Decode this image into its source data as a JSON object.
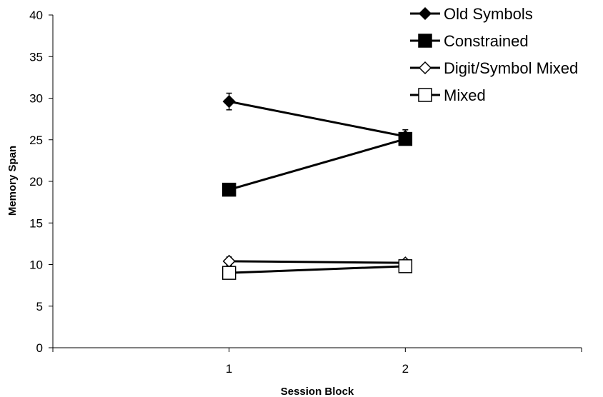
{
  "chart_data": {
    "type": "line",
    "title": "",
    "xlabel": "Session Block",
    "ylabel": "Memory Span",
    "categories": [
      "1",
      "2"
    ],
    "ylim": [
      0,
      40
    ],
    "yticks": [
      0,
      5,
      10,
      15,
      20,
      25,
      30,
      35,
      40
    ],
    "grid": false,
    "legend_position": "top-right",
    "series": [
      {
        "name": "Old Symbols",
        "marker": "filled-diamond",
        "values": [
          29.6,
          25.4
        ],
        "error": [
          1.0,
          0.8
        ]
      },
      {
        "name": "Constrained",
        "marker": "filled-square",
        "values": [
          19.0,
          25.1
        ],
        "error": [
          0.4,
          0.5
        ]
      },
      {
        "name": "Digit/Symbol Mixed",
        "marker": "open-diamond",
        "values": [
          10.4,
          10.2
        ],
        "error": [
          0.5,
          0.4
        ]
      },
      {
        "name": "Mixed",
        "marker": "open-square",
        "values": [
          9.0,
          9.8
        ],
        "error": [
          0.3,
          0.4
        ]
      }
    ],
    "colors": {
      "line": "#000000",
      "open_fill": "#ffffff",
      "filled": "#000000"
    }
  }
}
